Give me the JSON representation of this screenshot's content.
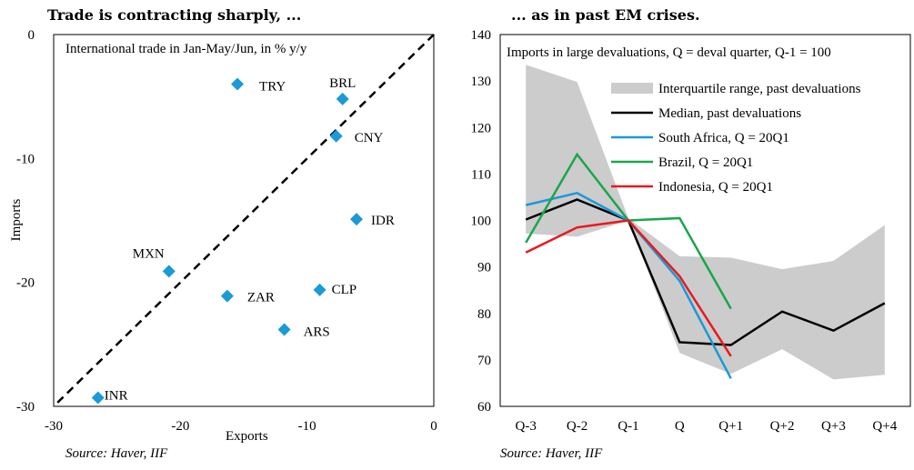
{
  "chart_data": [
    {
      "type": "scatter",
      "title": "Trade is contracting sharply, ...",
      "subtitle": "International trade in Jan-May/Jun, in % y/y",
      "xlabel": "Exports",
      "ylabel": "Imports",
      "xlim": [
        -30,
        0
      ],
      "ylim": [
        -30,
        0
      ],
      "xticks": [
        "-30",
        "-20",
        "-10",
        "0"
      ],
      "yticks": [
        "0",
        "-10",
        "-20",
        "-30"
      ],
      "marker_color": "#1a9ad6",
      "reference_line": "45-degree dashed",
      "points": [
        {
          "label": "TRY",
          "x": -15.5,
          "y": -4.0
        },
        {
          "label": "BRL",
          "x": -7.2,
          "y": -5.2
        },
        {
          "label": "CNY",
          "x": -7.7,
          "y": -8.2
        },
        {
          "label": "IDR",
          "x": -6.1,
          "y": -14.9
        },
        {
          "label": "MXN",
          "x": -20.9,
          "y": -19.1
        },
        {
          "label": "ZAR",
          "x": -16.3,
          "y": -21.1
        },
        {
          "label": "CLP",
          "x": -9.0,
          "y": -20.6
        },
        {
          "label": "ARS",
          "x": -11.8,
          "y": -23.8
        },
        {
          "label": "INR",
          "x": -26.5,
          "y": -29.3
        }
      ],
      "source": "Source: Haver, IIF"
    },
    {
      "type": "line",
      "title": "... as in past EM crises.",
      "subtitle": "Imports in large devaluations, Q = deval quarter, Q-1 = 100",
      "categories": [
        "Q-3",
        "Q-2",
        "Q-1",
        "Q",
        "Q+1",
        "Q+2",
        "Q+3",
        "Q+4"
      ],
      "ylim": [
        60,
        140
      ],
      "yticks": [
        "140",
        "130",
        "120",
        "110",
        "100",
        "90",
        "80",
        "70",
        "60"
      ],
      "band": {
        "name": "Interquartile range, past devaluations",
        "color": "#cccccc",
        "upper": [
          133.5,
          129.8,
          100.5,
          92.3,
          92.0,
          89.5,
          91.3,
          99.0
        ],
        "lower": [
          97.2,
          96.5,
          100.0,
          71.5,
          67.0,
          72.3,
          65.8,
          66.8
        ]
      },
      "series": [
        {
          "name": "Median, past devaluations",
          "color": "#000000",
          "values": [
            100.2,
            104.5,
            100.0,
            73.8,
            73.2,
            80.4,
            76.3,
            82.2
          ]
        },
        {
          "name": "South Africa, Q = 20Q1",
          "color": "#1a9ad6",
          "values": [
            103.3,
            105.9,
            100.0,
            87.0,
            66.0,
            null,
            null,
            null
          ]
        },
        {
          "name": "Brazil, Q = 20Q1",
          "color": "#1aa64b",
          "values": [
            95.2,
            114.2,
            100.0,
            100.5,
            81.0,
            null,
            null,
            null
          ]
        },
        {
          "name": "Indonesia, Q = 20Q1",
          "color": "#e8191f",
          "values": [
            93.1,
            98.5,
            100.0,
            88.0,
            70.8,
            null,
            null,
            null
          ]
        }
      ],
      "source": "Source: Haver, IIF"
    }
  ]
}
